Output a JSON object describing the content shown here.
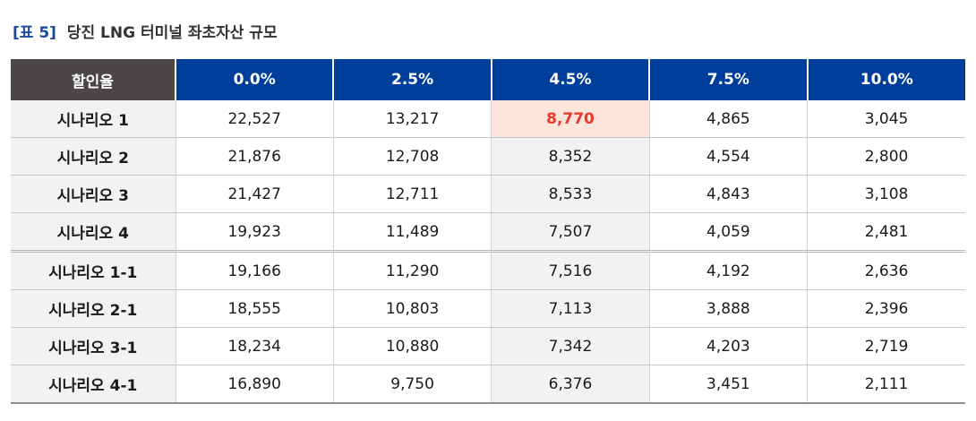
{
  "caption": {
    "tag": "[표 5]",
    "title": "당진 LNG 터미널 좌초자산 규모"
  },
  "table": {
    "corner": "할인율",
    "columns": [
      "0.0%",
      "2.5%",
      "4.5%",
      "7.5%",
      "10.0%"
    ],
    "rows": [
      {
        "label": "시나리오 1",
        "values": [
          "22,527",
          "13,217",
          "8,770",
          "4,865",
          "3,045"
        ]
      },
      {
        "label": "시나리오 2",
        "values": [
          "21,876",
          "12,708",
          "8,352",
          "4,554",
          "2,800"
        ]
      },
      {
        "label": "시나리오 3",
        "values": [
          "21,427",
          "12,711",
          "8,533",
          "4,843",
          "3,108"
        ]
      },
      {
        "label": "시나리오 4",
        "values": [
          "19,923",
          "11,489",
          "7,507",
          "4,059",
          "2,481"
        ]
      },
      {
        "label": "시나리오 1-1",
        "values": [
          "19,166",
          "11,290",
          "7,516",
          "4,192",
          "2,636"
        ]
      },
      {
        "label": "시나리오 2-1",
        "values": [
          "18,555",
          "10,803",
          "7,113",
          "3,888",
          "2,396"
        ]
      },
      {
        "label": "시나리오 3-1",
        "values": [
          "18,234",
          "10,880",
          "7,342",
          "4,203",
          "2,719"
        ]
      },
      {
        "label": "시나리오 4-1",
        "values": [
          "16,890",
          "9,750",
          "6,376",
          "3,451",
          "2,111"
        ]
      }
    ]
  },
  "colors": {
    "header_bg": "#003e9c",
    "corner_bg": "#4a4746",
    "highlight_bg": "#fbe4d9",
    "highlight_text": "#e53a2c"
  }
}
